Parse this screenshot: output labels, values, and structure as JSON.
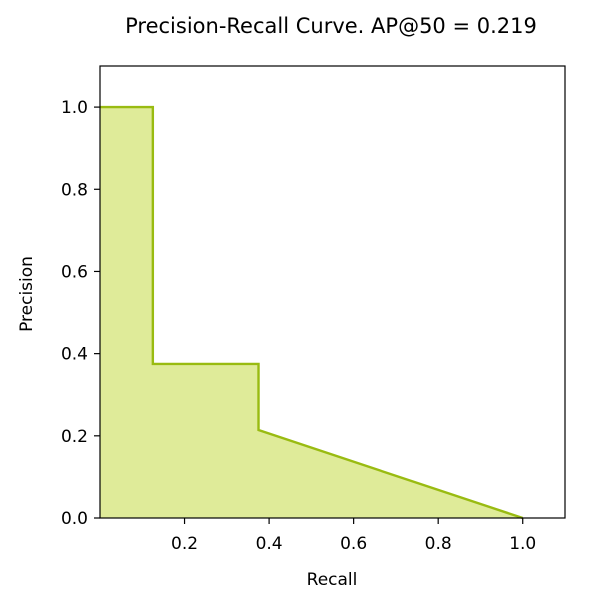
{
  "chart_data": {
    "type": "area",
    "title": "Precision-Recall Curve. AP@50 = 0.219",
    "xlabel": "Recall",
    "ylabel": "Precision",
    "xlim": [
      0.0,
      1.1
    ],
    "ylim": [
      0.0,
      1.1
    ],
    "xticks": [
      {
        "value": 0.2,
        "label": "0.2"
      },
      {
        "value": 0.4,
        "label": "0.4"
      },
      {
        "value": 0.6,
        "label": "0.6"
      },
      {
        "value": 0.8,
        "label": "0.8"
      },
      {
        "value": 1.0,
        "label": "1.0"
      }
    ],
    "yticks": [
      {
        "value": 0.0,
        "label": "0.0"
      },
      {
        "value": 0.2,
        "label": "0.2"
      },
      {
        "value": 0.4,
        "label": "0.4"
      },
      {
        "value": 0.6,
        "label": "0.6"
      },
      {
        "value": 0.8,
        "label": "0.8"
      },
      {
        "value": 1.0,
        "label": "1.0"
      }
    ],
    "grid": false,
    "series": [
      {
        "x": [
          0.0,
          0.125,
          0.125,
          0.375,
          0.375,
          1.0
        ],
        "y": [
          1.0,
          1.0,
          0.375,
          0.375,
          0.214,
          0.0
        ],
        "line_color": "#99bb11",
        "fill_color": "#dfeb99"
      }
    ]
  }
}
